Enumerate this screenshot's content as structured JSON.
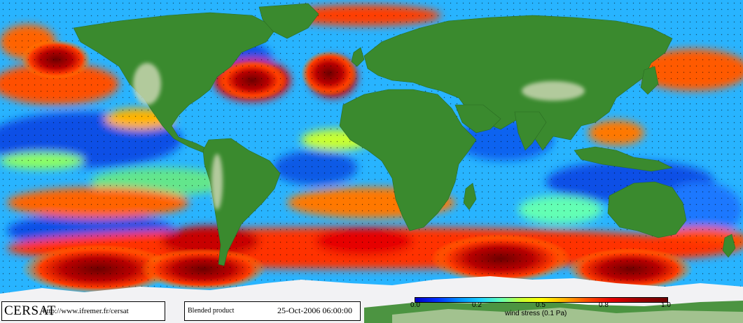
{
  "header": {
    "brand": "CERSAT",
    "url": "http://www.ifremer.fr/cersat",
    "product": "Blended product",
    "date": "25-Oct-2006 06:00:00"
  },
  "colorbar": {
    "ticks": [
      "0.0",
      "0.2",
      "0.5",
      "0.8",
      "1.0"
    ],
    "tick_values": [
      0.0,
      0.25,
      0.5,
      0.75,
      1.0
    ],
    "label": "wind stress (0.1 Pa)",
    "colors": [
      "#0000c8",
      "#0032ff",
      "#0096ff",
      "#1ed2ff",
      "#64ffb4",
      "#c8ff32",
      "#ffff00",
      "#ffb400",
      "#ff5000",
      "#e60000",
      "#a00000",
      "#6e0000"
    ]
  },
  "map": {
    "projection": "equirectangular",
    "land_color": "#3a8a2e",
    "land_highlight": "#c8d6b0",
    "ice_color": "#f2f2f4"
  }
}
